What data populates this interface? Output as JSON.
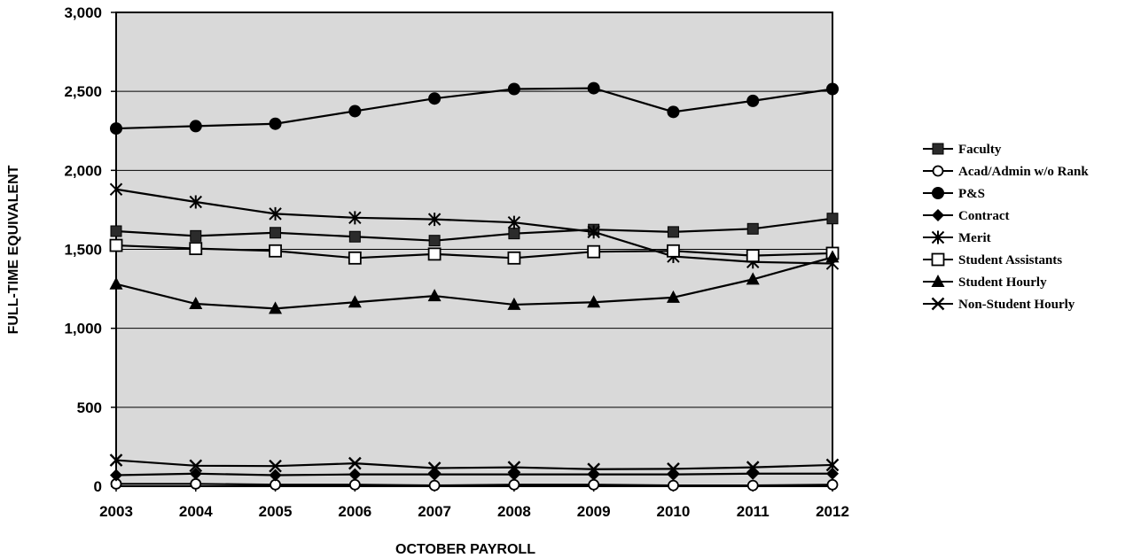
{
  "chart_data": {
    "type": "line",
    "xlabel": "OCTOBER PAYROLL",
    "ylabel": "FULL-TIME EQUIVALENT",
    "categories": [
      "2003",
      "2004",
      "2005",
      "2006",
      "2007",
      "2008",
      "2009",
      "2010",
      "2011",
      "2012"
    ],
    "y_ticks": [
      "0",
      "500",
      "1,000",
      "1,500",
      "2,000",
      "2,500",
      "3,000"
    ],
    "ylim": [
      0,
      3000
    ],
    "grid": true,
    "plot_background": "#d9d9d9",
    "legend_position": "right",
    "series": [
      {
        "name": "Faculty",
        "marker": "square-filled",
        "values": [
          1615,
          1585,
          1605,
          1580,
          1555,
          1600,
          1625,
          1610,
          1630,
          1695
        ]
      },
      {
        "name": "Acad/Admin w/o Rank",
        "marker": "circle-open",
        "values": [
          15,
          15,
          10,
          10,
          5,
          10,
          10,
          5,
          5,
          10
        ]
      },
      {
        "name": "P&S",
        "marker": "circle-filled",
        "values": [
          2265,
          2280,
          2295,
          2375,
          2455,
          2515,
          2520,
          2370,
          2440,
          2515
        ]
      },
      {
        "name": "Contract",
        "marker": "diamond-filled",
        "values": [
          70,
          80,
          70,
          75,
          75,
          75,
          75,
          75,
          80,
          80
        ]
      },
      {
        "name": "Merit",
        "marker": "asterisk",
        "values": [
          1880,
          1800,
          1725,
          1700,
          1690,
          1670,
          1610,
          1455,
          1420,
          1410
        ]
      },
      {
        "name": "Student Assistants",
        "marker": "square-open",
        "values": [
          1525,
          1505,
          1490,
          1445,
          1470,
          1445,
          1485,
          1490,
          1460,
          1475
        ]
      },
      {
        "name": "Student Hourly",
        "marker": "triangle-filled",
        "values": [
          1280,
          1155,
          1125,
          1165,
          1205,
          1150,
          1165,
          1195,
          1310,
          1450
        ]
      },
      {
        "name": "Non-Student Hourly",
        "marker": "x",
        "values": [
          165,
          130,
          128,
          145,
          115,
          120,
          108,
          110,
          120,
          135
        ]
      }
    ]
  }
}
